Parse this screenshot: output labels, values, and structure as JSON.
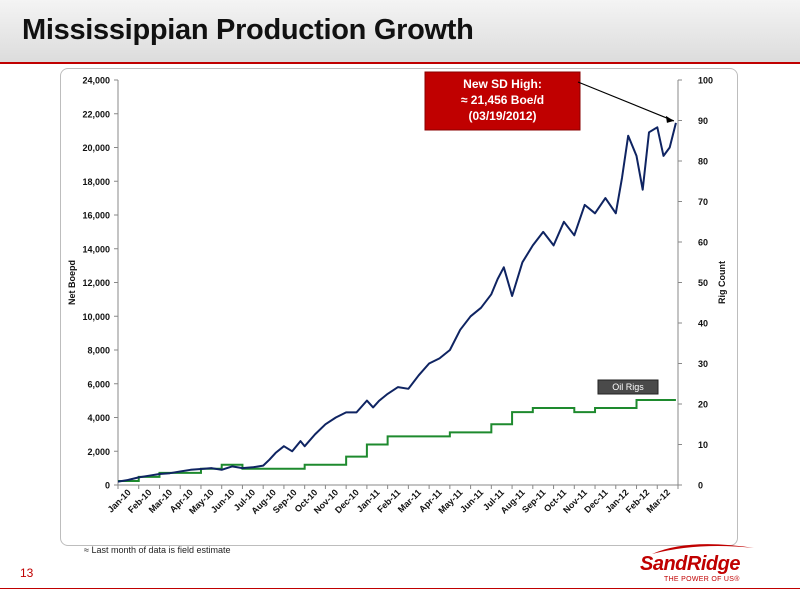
{
  "slide": {
    "title": "Mississippian Production Growth",
    "footnote": "≈ Last month of data is field estimate",
    "page_number": "13",
    "logo_text": "SandRidge",
    "logo_tagline": "THE POWER OF US®",
    "accent_color": "#c00000"
  },
  "chart_data": {
    "type": "line",
    "y_left_label": "Net Boepd",
    "y_right_label": "Rig Count",
    "y_left_range": [
      0,
      24000
    ],
    "y_right_range": [
      0,
      100
    ],
    "y_left_ticks": [
      "0",
      "2,000",
      "4,000",
      "6,000",
      "8,000",
      "10,000",
      "12,000",
      "14,000",
      "16,000",
      "18,000",
      "20,000",
      "22,000",
      "24,000"
    ],
    "y_right_ticks": [
      "0",
      "10",
      "20",
      "30",
      "40",
      "50",
      "60",
      "70",
      "80",
      "90",
      "100"
    ],
    "x_tick_labels": [
      "Jan-10",
      "Feb-10",
      "Mar-10",
      "Apr-10",
      "May-10",
      "Jun-10",
      "Jul-10",
      "Aug-10",
      "Sep-10",
      "Oct-10",
      "Nov-10",
      "Dec-10",
      "Jan-11",
      "Feb-11",
      "Mar-11",
      "Apr-11",
      "May-11",
      "Jun-11",
      "Jul-11",
      "Aug-11",
      "Sep-11",
      "Oct-11",
      "Nov-11",
      "Dec-11",
      "Jan-12",
      "Feb-12",
      "Mar-12"
    ],
    "grid": false,
    "series": [
      {
        "name": "Net Boepd",
        "axis": "left",
        "color": "#0f2462",
        "x_month": [
          0,
          0.5,
          1,
          1.5,
          2,
          2.5,
          3,
          3.5,
          4,
          4.5,
          5,
          5.5,
          6,
          6.5,
          7,
          7.3,
          7.6,
          8,
          8.4,
          8.8,
          9,
          9.5,
          10,
          10.5,
          11,
          11.5,
          12,
          12.3,
          12.6,
          13,
          13.5,
          14,
          14.5,
          15,
          15.5,
          16,
          16.5,
          17,
          17.5,
          18,
          18.3,
          18.6,
          19,
          19.5,
          20,
          20.5,
          21,
          21.5,
          22,
          22.5,
          23,
          23.5,
          24,
          24.3,
          24.6,
          25,
          25.3,
          25.6,
          26,
          26.3,
          26.6,
          26.9
        ],
        "y": [
          200,
          300,
          450,
          550,
          650,
          700,
          800,
          900,
          950,
          1000,
          900,
          1100,
          1000,
          1050,
          1150,
          1500,
          1900,
          2300,
          2000,
          2600,
          2300,
          3000,
          3600,
          4000,
          4300,
          4300,
          5000,
          4600,
          5000,
          5400,
          5800,
          5700,
          6500,
          7200,
          7500,
          8000,
          9200,
          10000,
          10500,
          11300,
          12200,
          12900,
          11200,
          13200,
          14200,
          15000,
          14200,
          15600,
          14800,
          16600,
          16100,
          17000,
          16100,
          18200,
          20700,
          19500,
          17500,
          20900,
          21200,
          19500,
          20000,
          21456
        ]
      },
      {
        "name": "Oil Rigs",
        "axis": "right",
        "color": "#1e8a2e",
        "steps": [
          {
            "x_month": 0,
            "y": 1
          },
          {
            "x_month": 1,
            "y": 2
          },
          {
            "x_month": 2,
            "y": 3
          },
          {
            "x_month": 4,
            "y": 4
          },
          {
            "x_month": 5,
            "y": 5
          },
          {
            "x_month": 6,
            "y": 4
          },
          {
            "x_month": 9,
            "y": 5
          },
          {
            "x_month": 11,
            "y": 7
          },
          {
            "x_month": 12,
            "y": 10
          },
          {
            "x_month": 13,
            "y": 12
          },
          {
            "x_month": 14,
            "y": 12
          },
          {
            "x_month": 15,
            "y": 12
          },
          {
            "x_month": 16,
            "y": 13
          },
          {
            "x_month": 17,
            "y": 13
          },
          {
            "x_month": 18,
            "y": 15
          },
          {
            "x_month": 19,
            "y": 18
          },
          {
            "x_month": 20,
            "y": 19
          },
          {
            "x_month": 21,
            "y": 19
          },
          {
            "x_month": 22,
            "y": 18
          },
          {
            "x_month": 23,
            "y": 19
          },
          {
            "x_month": 25,
            "y": 21
          },
          {
            "x_month": 26.9,
            "y": 21
          }
        ]
      }
    ],
    "annotations": {
      "callout_lines": [
        "New SD High:",
        "≈ 21,456 Boe/d",
        "(03/19/2012)"
      ],
      "callout_color": "#c00000",
      "series_label": "Oil Rigs"
    }
  }
}
